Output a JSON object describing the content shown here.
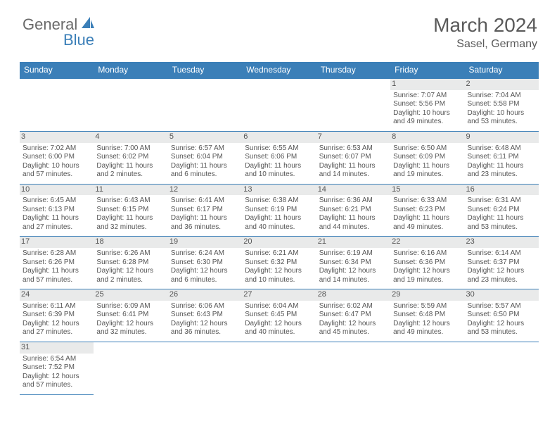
{
  "logo": {
    "general": "General",
    "blue": "Blue"
  },
  "title": "March 2024",
  "location": "Sasel, Germany",
  "weekdays": [
    "Sunday",
    "Monday",
    "Tuesday",
    "Wednesday",
    "Thursday",
    "Friday",
    "Saturday"
  ],
  "colors": {
    "header_bg": "#3b7fb8",
    "header_text": "#ffffff",
    "daybar_bg": "#e9eaea",
    "text": "#555555",
    "logo_gray": "#6a6a6a",
    "logo_blue": "#3b7fb8"
  },
  "weeks": [
    [
      null,
      null,
      null,
      null,
      null,
      {
        "day": "1",
        "sunrise": "Sunrise: 7:07 AM",
        "sunset": "Sunset: 5:56 PM",
        "daylight": "Daylight: 10 hours and 49 minutes."
      },
      {
        "day": "2",
        "sunrise": "Sunrise: 7:04 AM",
        "sunset": "Sunset: 5:58 PM",
        "daylight": "Daylight: 10 hours and 53 minutes."
      }
    ],
    [
      {
        "day": "3",
        "sunrise": "Sunrise: 7:02 AM",
        "sunset": "Sunset: 6:00 PM",
        "daylight": "Daylight: 10 hours and 57 minutes."
      },
      {
        "day": "4",
        "sunrise": "Sunrise: 7:00 AM",
        "sunset": "Sunset: 6:02 PM",
        "daylight": "Daylight: 11 hours and 2 minutes."
      },
      {
        "day": "5",
        "sunrise": "Sunrise: 6:57 AM",
        "sunset": "Sunset: 6:04 PM",
        "daylight": "Daylight: 11 hours and 6 minutes."
      },
      {
        "day": "6",
        "sunrise": "Sunrise: 6:55 AM",
        "sunset": "Sunset: 6:06 PM",
        "daylight": "Daylight: 11 hours and 10 minutes."
      },
      {
        "day": "7",
        "sunrise": "Sunrise: 6:53 AM",
        "sunset": "Sunset: 6:07 PM",
        "daylight": "Daylight: 11 hours and 14 minutes."
      },
      {
        "day": "8",
        "sunrise": "Sunrise: 6:50 AM",
        "sunset": "Sunset: 6:09 PM",
        "daylight": "Daylight: 11 hours and 19 minutes."
      },
      {
        "day": "9",
        "sunrise": "Sunrise: 6:48 AM",
        "sunset": "Sunset: 6:11 PM",
        "daylight": "Daylight: 11 hours and 23 minutes."
      }
    ],
    [
      {
        "day": "10",
        "sunrise": "Sunrise: 6:45 AM",
        "sunset": "Sunset: 6:13 PM",
        "daylight": "Daylight: 11 hours and 27 minutes."
      },
      {
        "day": "11",
        "sunrise": "Sunrise: 6:43 AM",
        "sunset": "Sunset: 6:15 PM",
        "daylight": "Daylight: 11 hours and 32 minutes."
      },
      {
        "day": "12",
        "sunrise": "Sunrise: 6:41 AM",
        "sunset": "Sunset: 6:17 PM",
        "daylight": "Daylight: 11 hours and 36 minutes."
      },
      {
        "day": "13",
        "sunrise": "Sunrise: 6:38 AM",
        "sunset": "Sunset: 6:19 PM",
        "daylight": "Daylight: 11 hours and 40 minutes."
      },
      {
        "day": "14",
        "sunrise": "Sunrise: 6:36 AM",
        "sunset": "Sunset: 6:21 PM",
        "daylight": "Daylight: 11 hours and 44 minutes."
      },
      {
        "day": "15",
        "sunrise": "Sunrise: 6:33 AM",
        "sunset": "Sunset: 6:23 PM",
        "daylight": "Daylight: 11 hours and 49 minutes."
      },
      {
        "day": "16",
        "sunrise": "Sunrise: 6:31 AM",
        "sunset": "Sunset: 6:24 PM",
        "daylight": "Daylight: 11 hours and 53 minutes."
      }
    ],
    [
      {
        "day": "17",
        "sunrise": "Sunrise: 6:28 AM",
        "sunset": "Sunset: 6:26 PM",
        "daylight": "Daylight: 11 hours and 57 minutes."
      },
      {
        "day": "18",
        "sunrise": "Sunrise: 6:26 AM",
        "sunset": "Sunset: 6:28 PM",
        "daylight": "Daylight: 12 hours and 2 minutes."
      },
      {
        "day": "19",
        "sunrise": "Sunrise: 6:24 AM",
        "sunset": "Sunset: 6:30 PM",
        "daylight": "Daylight: 12 hours and 6 minutes."
      },
      {
        "day": "20",
        "sunrise": "Sunrise: 6:21 AM",
        "sunset": "Sunset: 6:32 PM",
        "daylight": "Daylight: 12 hours and 10 minutes."
      },
      {
        "day": "21",
        "sunrise": "Sunrise: 6:19 AM",
        "sunset": "Sunset: 6:34 PM",
        "daylight": "Daylight: 12 hours and 14 minutes."
      },
      {
        "day": "22",
        "sunrise": "Sunrise: 6:16 AM",
        "sunset": "Sunset: 6:36 PM",
        "daylight": "Daylight: 12 hours and 19 minutes."
      },
      {
        "day": "23",
        "sunrise": "Sunrise: 6:14 AM",
        "sunset": "Sunset: 6:37 PM",
        "daylight": "Daylight: 12 hours and 23 minutes."
      }
    ],
    [
      {
        "day": "24",
        "sunrise": "Sunrise: 6:11 AM",
        "sunset": "Sunset: 6:39 PM",
        "daylight": "Daylight: 12 hours and 27 minutes."
      },
      {
        "day": "25",
        "sunrise": "Sunrise: 6:09 AM",
        "sunset": "Sunset: 6:41 PM",
        "daylight": "Daylight: 12 hours and 32 minutes."
      },
      {
        "day": "26",
        "sunrise": "Sunrise: 6:06 AM",
        "sunset": "Sunset: 6:43 PM",
        "daylight": "Daylight: 12 hours and 36 minutes."
      },
      {
        "day": "27",
        "sunrise": "Sunrise: 6:04 AM",
        "sunset": "Sunset: 6:45 PM",
        "daylight": "Daylight: 12 hours and 40 minutes."
      },
      {
        "day": "28",
        "sunrise": "Sunrise: 6:02 AM",
        "sunset": "Sunset: 6:47 PM",
        "daylight": "Daylight: 12 hours and 45 minutes."
      },
      {
        "day": "29",
        "sunrise": "Sunrise: 5:59 AM",
        "sunset": "Sunset: 6:48 PM",
        "daylight": "Daylight: 12 hours and 49 minutes."
      },
      {
        "day": "30",
        "sunrise": "Sunrise: 5:57 AM",
        "sunset": "Sunset: 6:50 PM",
        "daylight": "Daylight: 12 hours and 53 minutes."
      }
    ],
    [
      {
        "day": "31",
        "sunrise": "Sunrise: 6:54 AM",
        "sunset": "Sunset: 7:52 PM",
        "daylight": "Daylight: 12 hours and 57 minutes."
      },
      null,
      null,
      null,
      null,
      null,
      null
    ]
  ]
}
